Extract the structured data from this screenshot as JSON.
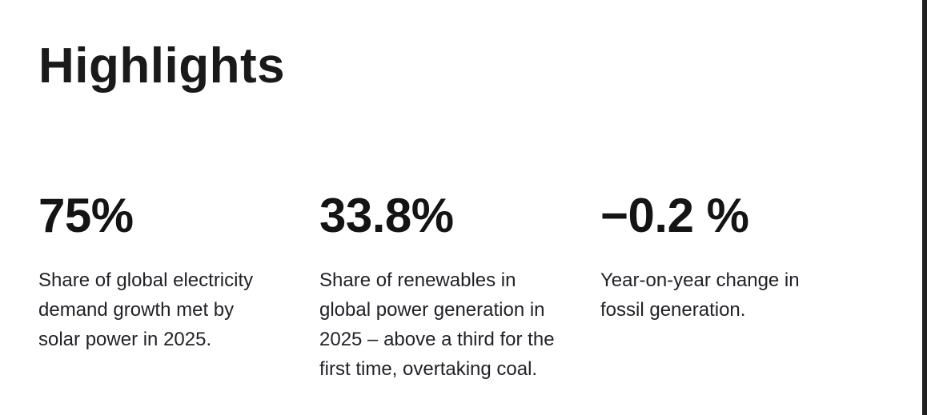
{
  "section": {
    "title": "Highlights"
  },
  "colors": {
    "background": "#ffffff",
    "heading_text": "#1a1a1a",
    "stat_value_text": "#141414",
    "stat_description_text": "#212227",
    "right_edge_bar": "#1e1f21"
  },
  "stats": [
    {
      "value": "75%",
      "description": "Share of global electricity demand growth met by solar power in 2025.",
      "lines": [
        "Share of global electricity",
        "demand growth met by",
        "solar power in 2025."
      ]
    },
    {
      "value": "33.8%",
      "description": "Share of renewables in global power generation in 2025 – above a third for the first time, overtaking coal.",
      "lines": [
        "Share of renewables in",
        "global power generation in",
        "2025 – above a third for the",
        "first time, overtaking coal."
      ]
    },
    {
      "value": "−0.2 %",
      "description": "Year-on-year change in fossil generation.",
      "lines": [
        "Year-on-year change in",
        "fossil generation."
      ]
    }
  ]
}
